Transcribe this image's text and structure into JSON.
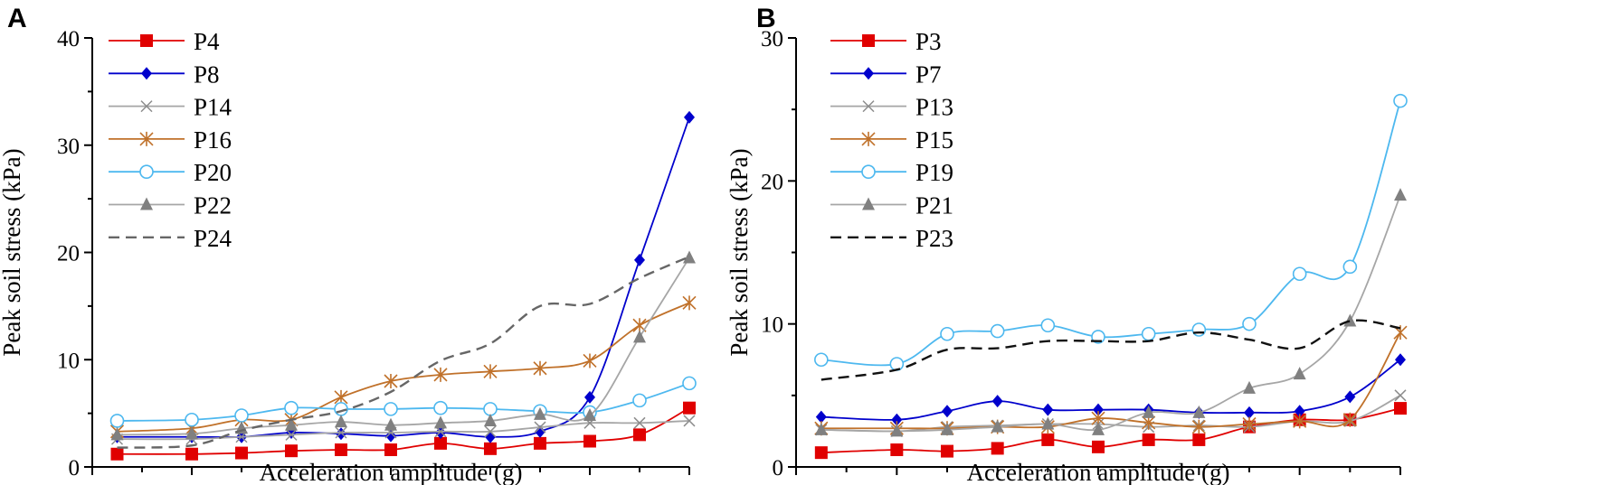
{
  "chart_data": [
    {
      "type": "line",
      "panel": "A",
      "xlabel": "Acceleration amplitude (g)",
      "ylabel": "Peak soil stress (kPa)",
      "xlim": [
        0,
        1.2
      ],
      "ylim": [
        0,
        40
      ],
      "xticks": [
        "0.0",
        "0.2",
        "0.4",
        "0.6",
        "0.8",
        "1.0",
        "1.2"
      ],
      "yticks": [
        "0",
        "10",
        "20",
        "30",
        "40"
      ],
      "legend_position": "top-left",
      "x": [
        0.05,
        0.2,
        0.3,
        0.4,
        0.5,
        0.6,
        0.7,
        0.8,
        0.9,
        1.0,
        1.1,
        1.2
      ],
      "series": [
        {
          "name": "P4",
          "color": "#e00000",
          "marker": "square",
          "values": [
            1.2,
            1.2,
            1.3,
            1.5,
            1.6,
            1.6,
            2.2,
            1.7,
            2.2,
            2.4,
            3.0,
            5.5
          ]
        },
        {
          "name": "P8",
          "color": "#0000cc",
          "marker": "diamond",
          "values": [
            2.8,
            2.8,
            2.8,
            3.2,
            3.1,
            2.9,
            3.2,
            2.8,
            3.3,
            6.5,
            19.3,
            32.6
          ]
        },
        {
          "name": "P14",
          "color": "#8c8c8c",
          "marker": "x",
          "values": [
            2.6,
            2.6,
            2.8,
            3.0,
            3.2,
            3.2,
            3.3,
            3.3,
            3.7,
            4.1,
            4.1,
            4.3
          ]
        },
        {
          "name": "P16",
          "color": "#c0712a",
          "marker": "asterisk",
          "values": [
            3.3,
            3.6,
            4.4,
            4.4,
            6.5,
            8.0,
            8.6,
            8.9,
            9.2,
            9.9,
            13.2,
            15.3
          ]
        },
        {
          "name": "P20",
          "color": "#4db8ef",
          "marker": "circle",
          "values": [
            4.3,
            4.4,
            4.8,
            5.5,
            5.4,
            5.4,
            5.5,
            5.4,
            5.2,
            5.1,
            6.2,
            7.8
          ]
        },
        {
          "name": "P22",
          "color": "#808080",
          "marker": "triangle",
          "values": [
            3.0,
            3.1,
            3.6,
            3.9,
            4.2,
            3.9,
            4.1,
            4.3,
            4.9,
            4.8,
            12.1,
            19.5
          ]
        },
        {
          "name": "P24",
          "color": "#666666",
          "marker": "dashed",
          "values": [
            1.8,
            2.0,
            3.4,
            4.4,
            5.2,
            7.0,
            9.9,
            11.5,
            15.0,
            15.2,
            17.6,
            19.6
          ]
        }
      ]
    },
    {
      "type": "line",
      "panel": "B",
      "xlabel": "Acceleration amplitude (g)",
      "ylabel": "Peak soil stress (kPa)",
      "xlim": [
        0,
        1.2
      ],
      "ylim": [
        0,
        30
      ],
      "xticks": [
        "0.0",
        "0.2",
        "0.4",
        "0.6",
        "0.8",
        "1.0",
        "1.2"
      ],
      "yticks": [
        "0",
        "10",
        "20",
        "30"
      ],
      "legend_position": "top-left",
      "x": [
        0.05,
        0.2,
        0.3,
        0.4,
        0.5,
        0.6,
        0.7,
        0.8,
        0.9,
        1.0,
        1.1,
        1.2
      ],
      "series": [
        {
          "name": "P3",
          "color": "#e00000",
          "marker": "square",
          "values": [
            1.0,
            1.2,
            1.1,
            1.3,
            1.9,
            1.4,
            1.9,
            1.9,
            2.8,
            3.3,
            3.3,
            4.1
          ]
        },
        {
          "name": "P7",
          "color": "#0000cc",
          "marker": "diamond",
          "values": [
            3.5,
            3.3,
            3.9,
            4.6,
            4.0,
            4.0,
            4.0,
            3.8,
            3.8,
            3.9,
            4.9,
            7.5
          ]
        },
        {
          "name": "P13",
          "color": "#8c8c8c",
          "marker": "x",
          "values": [
            2.6,
            2.5,
            2.8,
            2.9,
            3.0,
            3.0,
            2.8,
            2.9,
            2.8,
            3.2,
            3.2,
            5.0
          ]
        },
        {
          "name": "P15",
          "color": "#c0712a",
          "marker": "asterisk",
          "values": [
            2.7,
            2.7,
            2.7,
            2.8,
            2.8,
            3.4,
            3.1,
            2.8,
            3.0,
            3.2,
            3.3,
            9.4
          ]
        },
        {
          "name": "P19",
          "color": "#4db8ef",
          "marker": "circle",
          "values": [
            7.5,
            7.2,
            9.3,
            9.5,
            9.9,
            9.1,
            9.3,
            9.6,
            10.0,
            13.5,
            14.0,
            25.6
          ]
        },
        {
          "name": "P21",
          "color": "#808080",
          "marker": "triangle",
          "values": [
            2.6,
            2.5,
            2.6,
            2.8,
            3.0,
            2.6,
            3.8,
            3.8,
            5.5,
            6.5,
            10.2,
            19.0
          ]
        },
        {
          "name": "P23",
          "color": "#111111",
          "marker": "dashed",
          "values": [
            6.1,
            6.8,
            8.2,
            8.3,
            8.8,
            8.8,
            8.8,
            9.4,
            8.9,
            8.3,
            10.2,
            9.7
          ]
        }
      ]
    }
  ]
}
